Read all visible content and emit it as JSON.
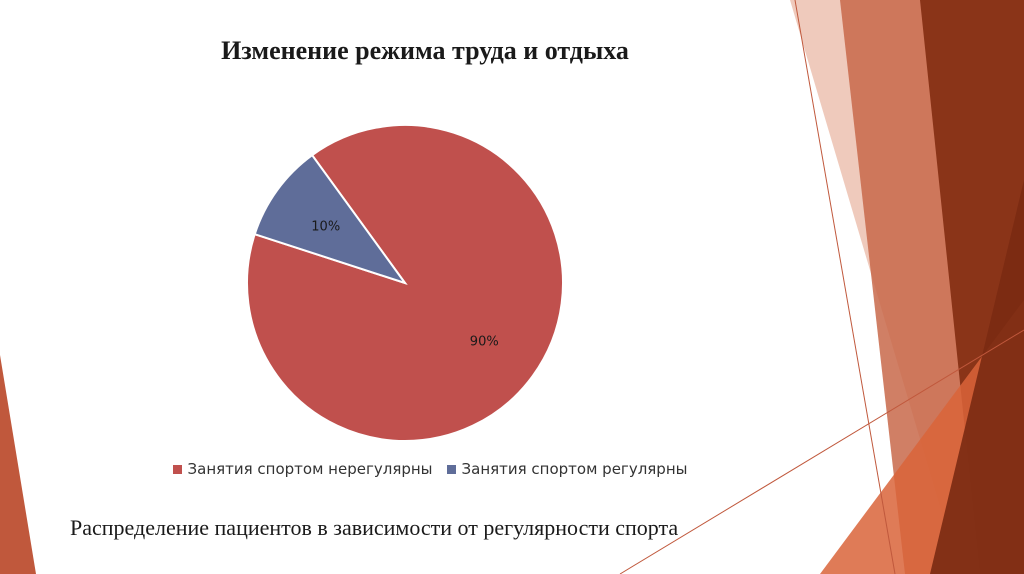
{
  "slide": {
    "title": "Изменение режима труда и отдыха",
    "caption": "Распределение пациентов в зависимости от регулярности спорта"
  },
  "theme": {
    "deco_colors": [
      "#c0583c",
      "#d96a44",
      "#a83f26",
      "#7a2a12",
      "#e8a890"
    ]
  },
  "chart_data": {
    "type": "pie",
    "title": "Изменение режима труда и отдыха",
    "slices": [
      {
        "label": "Занятия спортом нерегулярны",
        "value": 90,
        "data_label": "90%",
        "color": "#c0504d"
      },
      {
        "label": "Занятия спортом регулярны",
        "value": 10,
        "data_label": "10%",
        "color": "#5f6d99"
      }
    ],
    "legend_position": "bottom"
  }
}
